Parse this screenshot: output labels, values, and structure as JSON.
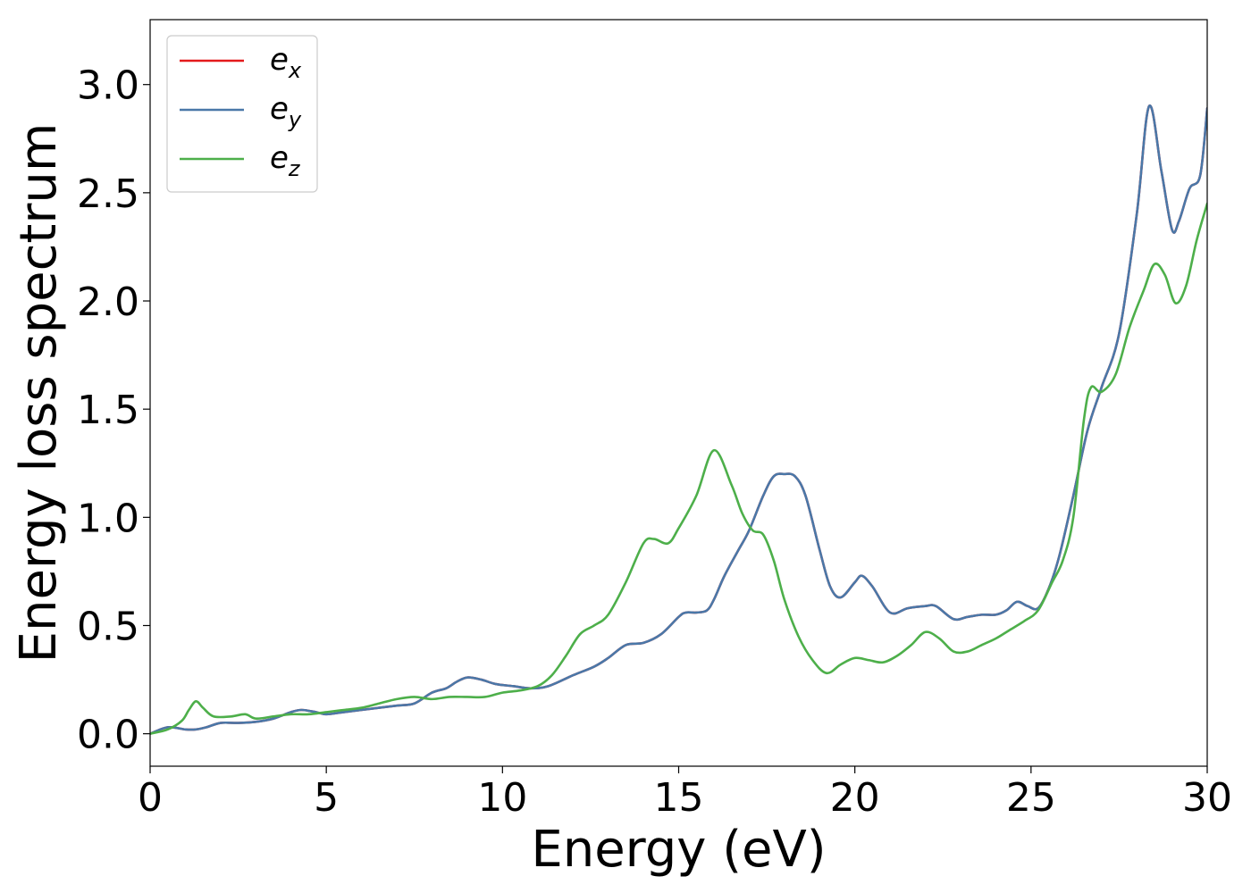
{
  "chart_data": {
    "type": "line",
    "title": "",
    "xlabel": "Energy (eV)",
    "ylabel": "Energy loss spectrum",
    "xlim": [
      0,
      30
    ],
    "ylim": [
      -0.15,
      3.3
    ],
    "xticks": [
      0,
      5,
      10,
      15,
      20,
      25,
      30
    ],
    "xtick_labels": [
      "0",
      "5",
      "10",
      "15",
      "20",
      "25",
      "30"
    ],
    "yticks": [
      0.0,
      0.5,
      1.0,
      1.5,
      2.0,
      2.5,
      3.0
    ],
    "ytick_labels": [
      "0.0",
      "0.5",
      "1.0",
      "1.5",
      "2.0",
      "2.5",
      "3.0"
    ],
    "grid": false,
    "legend_position": "top-left",
    "series": [
      {
        "name": "e",
        "subscript": "x",
        "color": "#e41a1c",
        "x": [
          0,
          0.5,
          1.0,
          1.3,
          1.6,
          2.0,
          2.5,
          3.0,
          3.5,
          4.0,
          4.3,
          4.7,
          5.0,
          5.5,
          6.0,
          6.5,
          7.0,
          7.5,
          8.0,
          8.4,
          8.7,
          9.0,
          9.4,
          9.8,
          10.3,
          10.8,
          11.3,
          12.0,
          12.6,
          13.0,
          13.5,
          14.0,
          14.5,
          15.0,
          15.2,
          15.5,
          15.8,
          16.0,
          16.3,
          16.7,
          17.0,
          17.4,
          17.7,
          18.0,
          18.3,
          18.6,
          19.0,
          19.3,
          19.6,
          20.0,
          20.2,
          20.5,
          21.0,
          21.5,
          22.0,
          22.3,
          22.8,
          23.2,
          23.6,
          24.0,
          24.3,
          24.6,
          24.9,
          25.2,
          25.5,
          25.8,
          26.2,
          26.6,
          27.0,
          27.5,
          28.0,
          28.35,
          28.7,
          29.0,
          29.2,
          29.5,
          29.8,
          30.0
        ],
        "y": [
          0.0,
          0.03,
          0.02,
          0.02,
          0.03,
          0.05,
          0.05,
          0.055,
          0.07,
          0.1,
          0.11,
          0.1,
          0.09,
          0.1,
          0.11,
          0.12,
          0.13,
          0.14,
          0.19,
          0.21,
          0.24,
          0.26,
          0.25,
          0.23,
          0.22,
          0.21,
          0.22,
          0.27,
          0.31,
          0.35,
          0.41,
          0.42,
          0.46,
          0.54,
          0.56,
          0.56,
          0.57,
          0.62,
          0.73,
          0.85,
          0.94,
          1.1,
          1.19,
          1.2,
          1.19,
          1.1,
          0.85,
          0.68,
          0.63,
          0.7,
          0.73,
          0.68,
          0.56,
          0.58,
          0.59,
          0.59,
          0.53,
          0.54,
          0.55,
          0.55,
          0.57,
          0.61,
          0.59,
          0.58,
          0.67,
          0.82,
          1.1,
          1.4,
          1.6,
          1.85,
          2.4,
          2.9,
          2.6,
          2.33,
          2.37,
          2.52,
          2.58,
          2.89
        ]
      },
      {
        "name": "e",
        "subscript": "y",
        "color": "#4a78a8",
        "x": [
          0,
          0.5,
          1.0,
          1.3,
          1.6,
          2.0,
          2.5,
          3.0,
          3.5,
          4.0,
          4.3,
          4.7,
          5.0,
          5.5,
          6.0,
          6.5,
          7.0,
          7.5,
          8.0,
          8.4,
          8.7,
          9.0,
          9.4,
          9.8,
          10.3,
          10.8,
          11.3,
          12.0,
          12.6,
          13.0,
          13.5,
          14.0,
          14.5,
          15.0,
          15.2,
          15.5,
          15.8,
          16.0,
          16.3,
          16.7,
          17.0,
          17.4,
          17.7,
          18.0,
          18.3,
          18.6,
          19.0,
          19.3,
          19.6,
          20.0,
          20.2,
          20.5,
          21.0,
          21.5,
          22.0,
          22.3,
          22.8,
          23.2,
          23.6,
          24.0,
          24.3,
          24.6,
          24.9,
          25.2,
          25.5,
          25.8,
          26.2,
          26.6,
          27.0,
          27.5,
          28.0,
          28.35,
          28.7,
          29.0,
          29.2,
          29.5,
          29.8,
          30.0
        ],
        "y": [
          0.0,
          0.03,
          0.02,
          0.02,
          0.03,
          0.05,
          0.05,
          0.055,
          0.07,
          0.1,
          0.11,
          0.1,
          0.09,
          0.1,
          0.11,
          0.12,
          0.13,
          0.14,
          0.19,
          0.21,
          0.24,
          0.26,
          0.25,
          0.23,
          0.22,
          0.21,
          0.22,
          0.27,
          0.31,
          0.35,
          0.41,
          0.42,
          0.46,
          0.54,
          0.56,
          0.56,
          0.57,
          0.62,
          0.73,
          0.85,
          0.94,
          1.1,
          1.19,
          1.2,
          1.19,
          1.1,
          0.85,
          0.68,
          0.63,
          0.7,
          0.73,
          0.68,
          0.56,
          0.58,
          0.59,
          0.59,
          0.53,
          0.54,
          0.55,
          0.55,
          0.57,
          0.61,
          0.59,
          0.58,
          0.67,
          0.82,
          1.1,
          1.4,
          1.6,
          1.85,
          2.4,
          2.9,
          2.6,
          2.33,
          2.37,
          2.52,
          2.58,
          2.89
        ]
      },
      {
        "name": "e",
        "subscript": "z",
        "color": "#4daf4a",
        "x": [
          0,
          0.5,
          0.9,
          1.1,
          1.3,
          1.5,
          1.8,
          2.3,
          2.7,
          3.0,
          3.5,
          4.0,
          4.5,
          5.0,
          5.5,
          6.0,
          6.5,
          7.0,
          7.5,
          8.0,
          8.5,
          9.0,
          9.5,
          10.0,
          10.5,
          11.0,
          11.4,
          11.8,
          12.2,
          12.6,
          13.0,
          13.5,
          14.0,
          14.3,
          14.7,
          15.0,
          15.5,
          16.0,
          16.5,
          16.8,
          17.1,
          17.4,
          17.7,
          18.0,
          18.4,
          18.8,
          19.2,
          19.6,
          20.0,
          20.4,
          20.8,
          21.2,
          21.6,
          22.0,
          22.4,
          22.8,
          23.2,
          23.6,
          24.0,
          24.4,
          24.8,
          25.2,
          25.6,
          25.9,
          26.2,
          26.5,
          26.7,
          27.0,
          27.4,
          27.8,
          28.2,
          28.5,
          28.8,
          29.1,
          29.4,
          29.7,
          30.0
        ],
        "y": [
          0.0,
          0.02,
          0.06,
          0.11,
          0.15,
          0.12,
          0.08,
          0.08,
          0.09,
          0.07,
          0.08,
          0.09,
          0.09,
          0.1,
          0.11,
          0.12,
          0.14,
          0.16,
          0.17,
          0.16,
          0.17,
          0.17,
          0.17,
          0.19,
          0.2,
          0.22,
          0.27,
          0.36,
          0.46,
          0.5,
          0.55,
          0.7,
          0.88,
          0.9,
          0.88,
          0.95,
          1.1,
          1.31,
          1.15,
          1.02,
          0.94,
          0.92,
          0.8,
          0.62,
          0.45,
          0.34,
          0.28,
          0.32,
          0.35,
          0.34,
          0.33,
          0.36,
          0.41,
          0.47,
          0.44,
          0.38,
          0.38,
          0.41,
          0.44,
          0.48,
          0.52,
          0.57,
          0.7,
          0.8,
          1.0,
          1.45,
          1.6,
          1.58,
          1.66,
          1.88,
          2.05,
          2.17,
          2.12,
          1.99,
          2.07,
          2.28,
          2.45
        ]
      }
    ]
  }
}
